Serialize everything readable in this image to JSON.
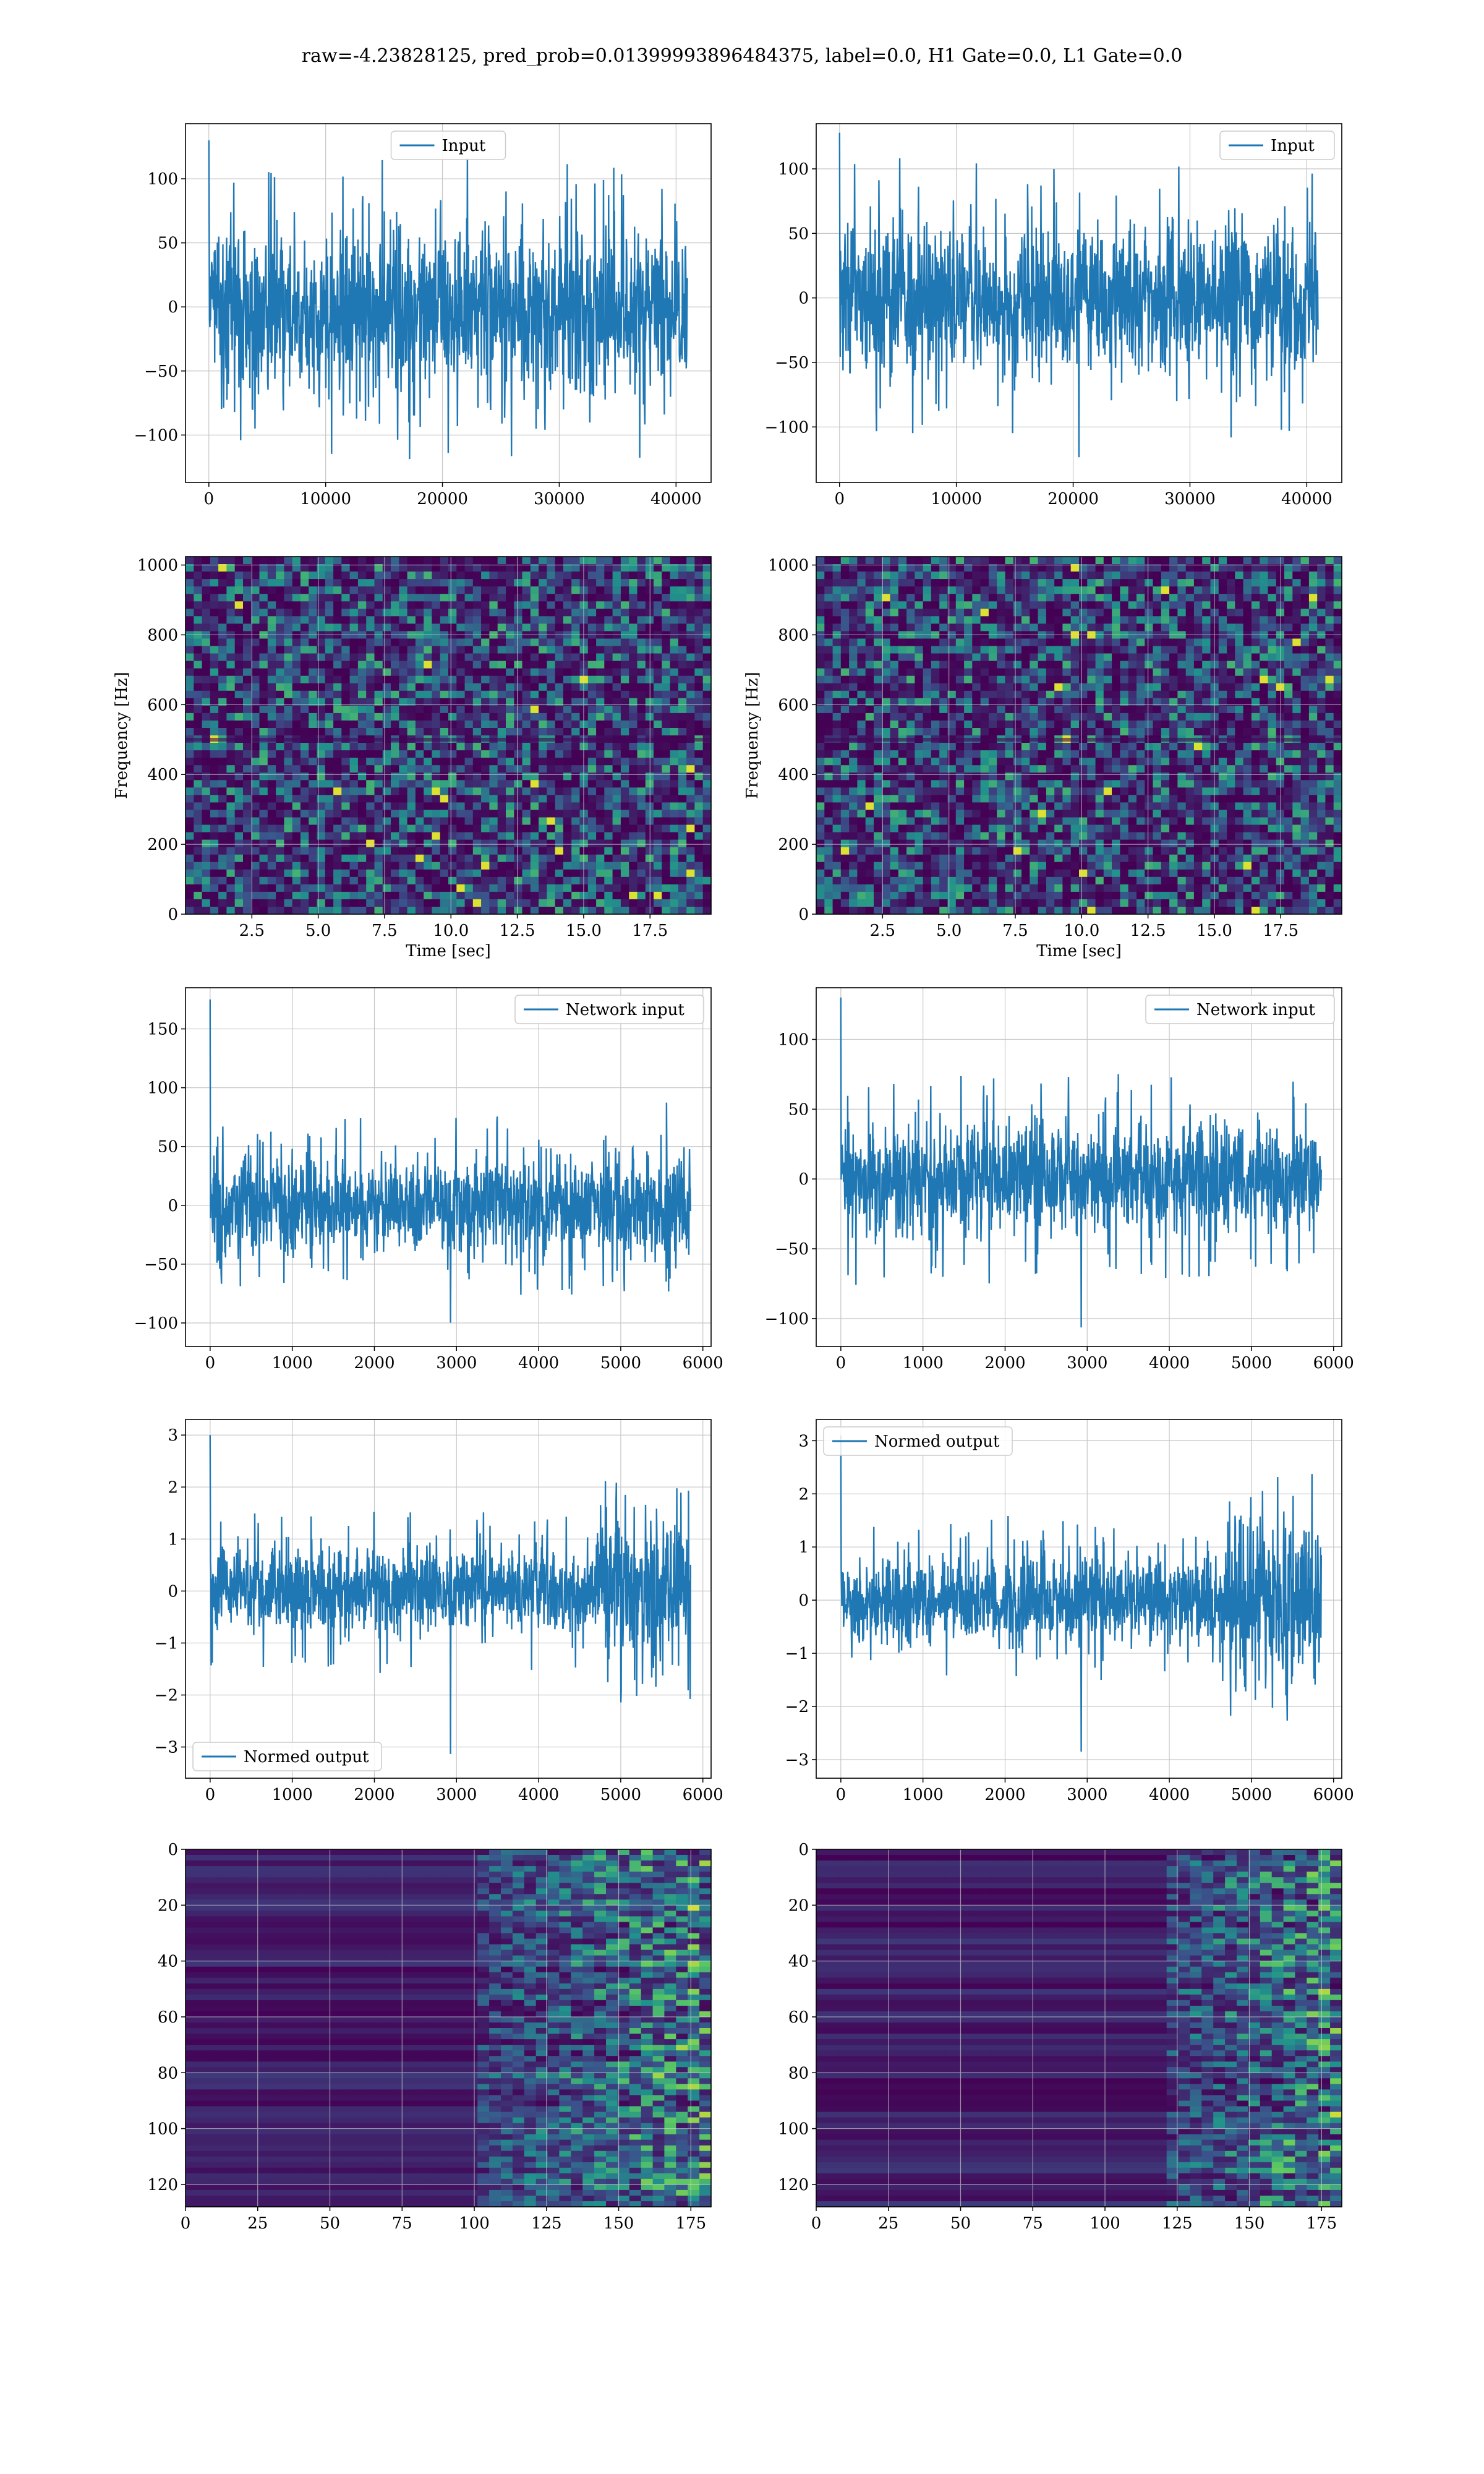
{
  "figure": {
    "title": "raw=-4.23828125, pred_prob=0.01399993896484375, label=0.0, H1 Gate=0.0, L1 Gate=0.0"
  },
  "colors": {
    "series": "#1f77b4",
    "grid": "#b0b0b0",
    "viridis_low": "#440154",
    "viridis_mid": "#21918c",
    "viridis_high": "#fde725"
  },
  "chart_data": [
    {
      "id": "input-h1",
      "type": "line",
      "title": "",
      "xlabel": "",
      "ylabel": "",
      "legend": "Input",
      "legend_loc": "upper center",
      "xlim": [
        -2000,
        43000
      ],
      "ylim": [
        -137,
        143
      ],
      "xticks": [
        0,
        10000,
        20000,
        30000,
        40000
      ],
      "yticks": [
        -100,
        -50,
        0,
        50,
        100
      ],
      "x_range": [
        0,
        40960
      ],
      "noise": {
        "body": 70,
        "peak": 130,
        "low": -120
      }
    },
    {
      "id": "input-l1",
      "type": "line",
      "title": "",
      "xlabel": "",
      "ylabel": "",
      "legend": "Input",
      "legend_loc": "upper right",
      "xlim": [
        -2000,
        43000
      ],
      "ylim": [
        -143,
        135
      ],
      "xticks": [
        0,
        10000,
        20000,
        30000,
        40000
      ],
      "yticks": [
        -100,
        -50,
        0,
        50,
        100
      ],
      "x_range": [
        0,
        40960
      ],
      "noise": {
        "body": 65,
        "peak": 128,
        "low": -130
      }
    },
    {
      "id": "spec-h1",
      "type": "heatmap",
      "title": "",
      "xlabel": "Time [sec]",
      "ylabel": "Frequency [Hz]",
      "xlim": [
        0,
        19.8
      ],
      "ylim": [
        0,
        1024
      ],
      "xticks": [
        2.5,
        5.0,
        7.5,
        10.0,
        12.5,
        15.0,
        17.5
      ],
      "yticks": [
        0,
        200,
        400,
        600,
        800,
        1000
      ]
    },
    {
      "id": "spec-l1",
      "type": "heatmap",
      "title": "",
      "xlabel": "Time [sec]",
      "ylabel": "Frequency [Hz]",
      "xlim": [
        0,
        19.8
      ],
      "ylim": [
        0,
        1024
      ],
      "xticks": [
        2.5,
        5.0,
        7.5,
        10.0,
        12.5,
        15.0,
        17.5
      ],
      "yticks": [
        0,
        200,
        400,
        600,
        800,
        1000
      ]
    },
    {
      "id": "net-h1",
      "type": "line",
      "title": "",
      "xlabel": "",
      "ylabel": "",
      "legend": "Network input",
      "legend_loc": "upper right",
      "xlim": [
        -300,
        6100
      ],
      "ylim": [
        -120,
        185
      ],
      "xticks": [
        0,
        1000,
        2000,
        3000,
        4000,
        5000,
        6000
      ],
      "yticks": [
        -100,
        -50,
        0,
        50,
        100,
        150
      ],
      "x_range": [
        0,
        5850
      ],
      "noise": {
        "body": 45,
        "peak": 175,
        "low": -105
      }
    },
    {
      "id": "net-l1",
      "type": "line",
      "title": "",
      "xlabel": "",
      "ylabel": "",
      "legend": "Network input",
      "legend_loc": "upper right",
      "xlim": [
        -300,
        6100
      ],
      "ylim": [
        -120,
        137
      ],
      "xticks": [
        0,
        1000,
        2000,
        3000,
        4000,
        5000,
        6000
      ],
      "yticks": [
        -100,
        -50,
        0,
        50,
        100
      ],
      "x_range": [
        0,
        5850
      ],
      "noise": {
        "body": 45,
        "peak": 130,
        "low": -112
      }
    },
    {
      "id": "norm-h1",
      "type": "line",
      "title": "",
      "xlabel": "",
      "ylabel": "",
      "legend": "Normed output",
      "legend_loc": "lower left",
      "xlim": [
        -300,
        6100
      ],
      "ylim": [
        -3.6,
        3.3
      ],
      "xticks": [
        0,
        1000,
        2000,
        3000,
        4000,
        5000,
        6000
      ],
      "yticks": [
        -3,
        -2,
        -1,
        0,
        1,
        2,
        3
      ],
      "x_range": [
        0,
        5850
      ],
      "burst_start": 4700,
      "noise": {
        "body": 0.9,
        "peak": 3.0,
        "low": -3.3
      }
    },
    {
      "id": "norm-l1",
      "type": "line",
      "title": "",
      "xlabel": "",
      "ylabel": "",
      "legend": "Normed output",
      "legend_loc": "upper left",
      "xlim": [
        -300,
        6100
      ],
      "ylim": [
        -3.35,
        3.4
      ],
      "xticks": [
        0,
        1000,
        2000,
        3000,
        4000,
        5000,
        6000
      ],
      "yticks": [
        -3,
        -2,
        -1,
        0,
        1,
        2,
        3
      ],
      "x_range": [
        0,
        5850
      ],
      "burst_start": 4700,
      "noise": {
        "body": 0.9,
        "peak": 3.1,
        "low": -3.0
      }
    },
    {
      "id": "feat-h1",
      "type": "heatmap",
      "title": "",
      "xlabel": "",
      "ylabel": "",
      "xlim": [
        0,
        182
      ],
      "ylim": [
        128,
        0
      ],
      "xticks": [
        0,
        25,
        50,
        75,
        100,
        125,
        150,
        175
      ],
      "yticks": [
        0,
        20,
        40,
        60,
        80,
        100,
        120
      ],
      "transition": 100
    },
    {
      "id": "feat-l1",
      "type": "heatmap",
      "title": "",
      "xlabel": "",
      "ylabel": "",
      "xlim": [
        0,
        182
      ],
      "ylim": [
        128,
        0
      ],
      "xticks": [
        0,
        25,
        50,
        75,
        100,
        125,
        150,
        175
      ],
      "yticks": [
        0,
        20,
        40,
        60,
        80,
        100,
        120
      ],
      "transition": 120
    }
  ]
}
